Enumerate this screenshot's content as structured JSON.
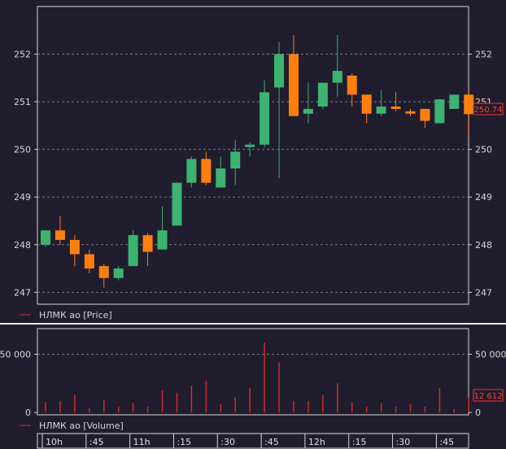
{
  "colors": {
    "background": "#1f1d2e",
    "plot_bg": "#1f1d2e",
    "up": "#3cb371",
    "down": "#ff7f0e",
    "volume": "#d42a2a",
    "grid": "#7a7a8a",
    "axis": "#d8d8d8",
    "separator": "#e8e8e8",
    "last_marker": "#ff3030"
  },
  "chart_data": [
    {
      "type": "candlestick",
      "legend": "НЛМК ао [Price]",
      "y_ticks": [
        247,
        248,
        249,
        250,
        251,
        252
      ],
      "ylim": [
        246.75,
        253
      ],
      "last_value_label": "250.74",
      "last_value": 250.74,
      "candles": [
        {
          "o": 248.0,
          "h": 248.3,
          "l": 247.95,
          "c": 248.3
        },
        {
          "o": 248.3,
          "h": 248.6,
          "l": 248.0,
          "c": 248.1
        },
        {
          "o": 248.1,
          "h": 248.2,
          "l": 247.55,
          "c": 247.8
        },
        {
          "o": 247.8,
          "h": 247.9,
          "l": 247.4,
          "c": 247.5
        },
        {
          "o": 247.55,
          "h": 247.6,
          "l": 247.1,
          "c": 247.3
        },
        {
          "o": 247.3,
          "h": 247.55,
          "l": 247.25,
          "c": 247.5
        },
        {
          "o": 247.55,
          "h": 248.3,
          "l": 247.55,
          "c": 248.2
        },
        {
          "o": 248.2,
          "h": 248.25,
          "l": 247.55,
          "c": 247.85
        },
        {
          "o": 247.9,
          "h": 248.8,
          "l": 247.9,
          "c": 248.3
        },
        {
          "o": 248.4,
          "h": 249.3,
          "l": 248.4,
          "c": 249.3
        },
        {
          "o": 249.3,
          "h": 249.85,
          "l": 249.2,
          "c": 249.8
        },
        {
          "o": 249.8,
          "h": 249.95,
          "l": 249.25,
          "c": 249.3
        },
        {
          "o": 249.2,
          "h": 249.85,
          "l": 249.2,
          "c": 249.6
        },
        {
          "o": 249.6,
          "h": 250.2,
          "l": 249.25,
          "c": 249.95
        },
        {
          "o": 250.05,
          "h": 250.15,
          "l": 249.85,
          "c": 250.1
        },
        {
          "o": 250.1,
          "h": 251.45,
          "l": 250.05,
          "c": 251.2
        },
        {
          "o": 251.3,
          "h": 252.25,
          "l": 249.4,
          "c": 252.0
        },
        {
          "o": 252.0,
          "h": 252.4,
          "l": 250.7,
          "c": 250.7
        },
        {
          "o": 250.75,
          "h": 251.4,
          "l": 250.55,
          "c": 250.85
        },
        {
          "o": 250.9,
          "h": 251.4,
          "l": 250.85,
          "c": 251.4
        },
        {
          "o": 251.4,
          "h": 252.4,
          "l": 251.1,
          "c": 251.65
        },
        {
          "o": 251.55,
          "h": 251.6,
          "l": 250.9,
          "c": 251.15
        },
        {
          "o": 251.15,
          "h": 251.15,
          "l": 250.55,
          "c": 250.75
        },
        {
          "o": 250.75,
          "h": 251.25,
          "l": 250.7,
          "c": 250.9
        },
        {
          "o": 250.9,
          "h": 251.2,
          "l": 250.8,
          "c": 250.85
        },
        {
          "o": 250.8,
          "h": 250.85,
          "l": 250.7,
          "c": 250.75
        },
        {
          "o": 250.85,
          "h": 250.85,
          "l": 250.45,
          "c": 250.6
        },
        {
          "o": 250.55,
          "h": 251.05,
          "l": 250.55,
          "c": 251.05
        },
        {
          "o": 250.85,
          "h": 251.15,
          "l": 250.85,
          "c": 251.15
        },
        {
          "o": 251.15,
          "h": 251.25,
          "l": 250.3,
          "c": 250.74
        }
      ]
    },
    {
      "type": "bar",
      "legend": "НЛМК ао [Volume]",
      "y_ticks": [
        0,
        50000
      ],
      "y_tick_labels": [
        "0",
        "50 000"
      ],
      "ylim": [
        -2000,
        72000
      ],
      "last_value_label": "12 612",
      "last_value": 12612,
      "values": [
        9000,
        10000,
        15000,
        4000,
        11000,
        5000,
        8000,
        5000,
        19000,
        17000,
        23000,
        27000,
        7000,
        13000,
        21000,
        60000,
        43000,
        10000,
        10000,
        15000,
        25000,
        9000,
        5000,
        8000,
        5000,
        7000,
        5000,
        21000,
        3000,
        12612
      ]
    }
  ],
  "time_axis": {
    "labels": [
      "10h",
      ":45",
      "11h",
      ":15",
      ":30",
      ":45",
      "12h",
      ":15",
      ":30",
      ":45"
    ],
    "candle_index": [
      0,
      3,
      6,
      9,
      12,
      15,
      18,
      21,
      24,
      27
    ]
  }
}
